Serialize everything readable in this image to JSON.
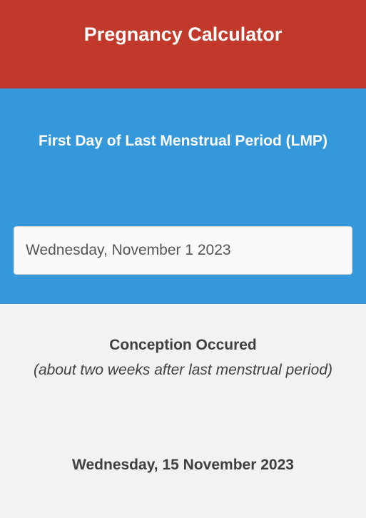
{
  "header": {
    "title": "Pregnancy Calculator"
  },
  "lmp": {
    "label": "First Day of Last Menstrual Period (LMP)",
    "date_value": "Wednesday, November 1 2023"
  },
  "conception": {
    "title": "Conception Occured",
    "subtitle": "(about two weeks after last menstrual period)",
    "date": "Wednesday, 15 November 2023"
  },
  "colors": {
    "header_bg": "#c0392b",
    "lmp_bg": "#3598db",
    "result_bg": "#f2f2f2"
  }
}
